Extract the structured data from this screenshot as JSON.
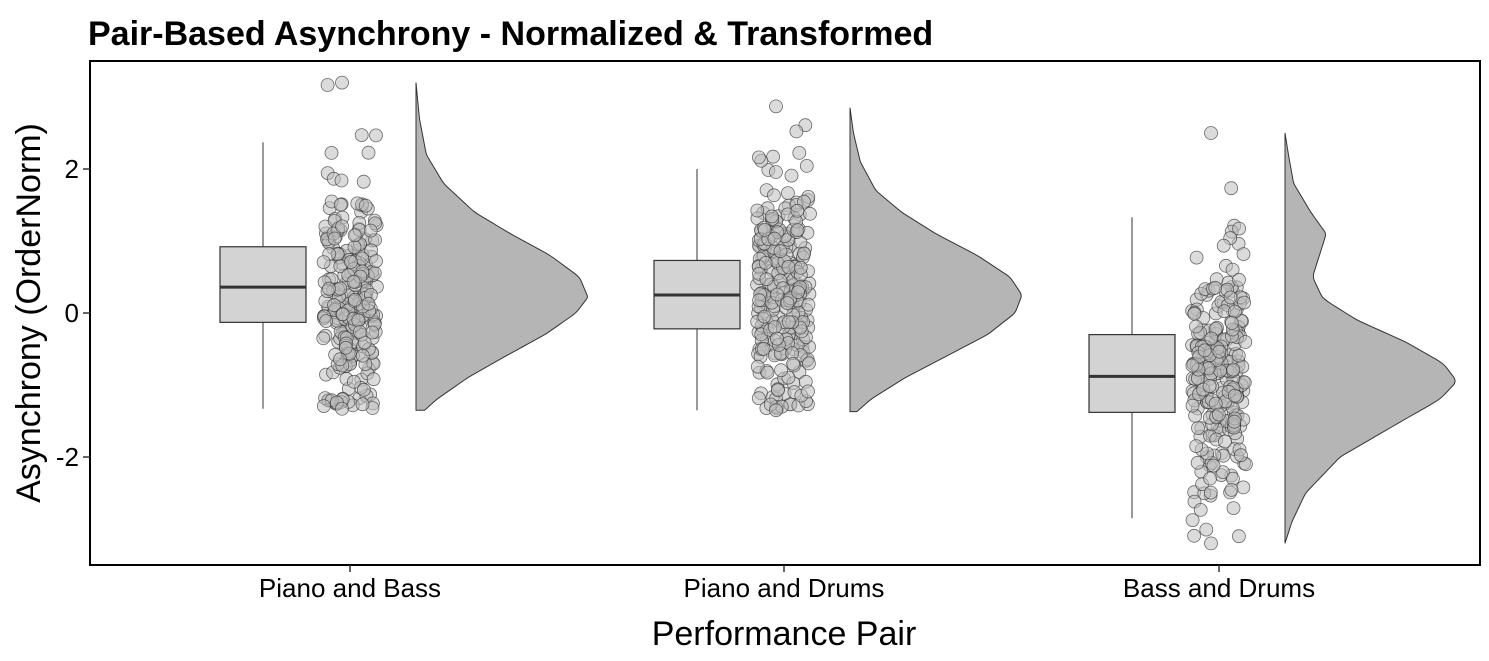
{
  "chart_data": {
    "type": "raincloud",
    "title": "Pair-Based Asynchrony - Normalized & Transformed",
    "xlabel": "Performance Pair",
    "ylabel": "Asynchrony (OrderNorm)",
    "ylim": [
      -3.5,
      3.5
    ],
    "y_ticks": [
      -2,
      0,
      2
    ],
    "categories": [
      "Piano and Bass",
      "Piano and Drums",
      "Bass and Drums"
    ],
    "colors": {
      "box_fill": "#d3d3d3",
      "density_fill": "#b5b5b5",
      "point_fill": "#bdbdbd",
      "stroke": "#333333"
    },
    "groups": [
      {
        "name": "Piano and Bass",
        "box": {
          "min": -1.33,
          "q1": -0.13,
          "median": 0.36,
          "q3": 0.92,
          "max": 2.37
        },
        "density": {
          "min": -1.35,
          "max": 3.2,
          "peak": 0.22,
          "shape": [
            [
              -1.35,
              0.05
            ],
            [
              -1.2,
              0.12
            ],
            [
              -0.9,
              0.3
            ],
            [
              -0.6,
              0.52
            ],
            [
              -0.3,
              0.75
            ],
            [
              0.0,
              0.93
            ],
            [
              0.22,
              1.0
            ],
            [
              0.5,
              0.95
            ],
            [
              0.8,
              0.78
            ],
            [
              1.1,
              0.55
            ],
            [
              1.4,
              0.34
            ],
            [
              1.8,
              0.16
            ],
            [
              2.2,
              0.06
            ],
            [
              2.7,
              0.02
            ],
            [
              3.2,
              0.0
            ]
          ]
        },
        "points_range": [
          -1.33,
          3.2
        ]
      },
      {
        "name": "Piano and Drums",
        "box": {
          "min": -1.35,
          "q1": -0.22,
          "median": 0.25,
          "q3": 0.73,
          "max": 2.0
        },
        "density": {
          "min": -1.37,
          "max": 2.85,
          "peak": 0.25,
          "shape": [
            [
              -1.37,
              0.04
            ],
            [
              -1.2,
              0.12
            ],
            [
              -0.9,
              0.32
            ],
            [
              -0.6,
              0.56
            ],
            [
              -0.3,
              0.8
            ],
            [
              0.0,
              0.96
            ],
            [
              0.25,
              1.0
            ],
            [
              0.5,
              0.93
            ],
            [
              0.8,
              0.74
            ],
            [
              1.1,
              0.5
            ],
            [
              1.4,
              0.3
            ],
            [
              1.7,
              0.15
            ],
            [
              2.1,
              0.06
            ],
            [
              2.5,
              0.02
            ],
            [
              2.85,
              0.0
            ]
          ]
        },
        "points_range": [
          -1.35,
          2.87
        ]
      },
      {
        "name": "Bass and Drums",
        "box": {
          "min": -2.85,
          "q1": -1.38,
          "median": -0.88,
          "q3": -0.3,
          "max": 1.33
        },
        "density": {
          "min": -3.2,
          "max": 2.5,
          "peak": -0.95,
          "shape": [
            [
              -3.2,
              0.0
            ],
            [
              -2.9,
              0.04
            ],
            [
              -2.5,
              0.12
            ],
            [
              -2.0,
              0.32
            ],
            [
              -1.5,
              0.68
            ],
            [
              -1.2,
              0.9
            ],
            [
              -0.95,
              1.0
            ],
            [
              -0.7,
              0.92
            ],
            [
              -0.4,
              0.7
            ],
            [
              -0.1,
              0.42
            ],
            [
              0.2,
              0.22
            ],
            [
              0.5,
              0.16
            ],
            [
              0.8,
              0.2
            ],
            [
              1.1,
              0.24
            ],
            [
              1.4,
              0.15
            ],
            [
              1.8,
              0.05
            ],
            [
              2.2,
              0.02
            ],
            [
              2.5,
              0.0
            ]
          ]
        },
        "points_range": [
          -3.2,
          2.5
        ]
      }
    ]
  }
}
